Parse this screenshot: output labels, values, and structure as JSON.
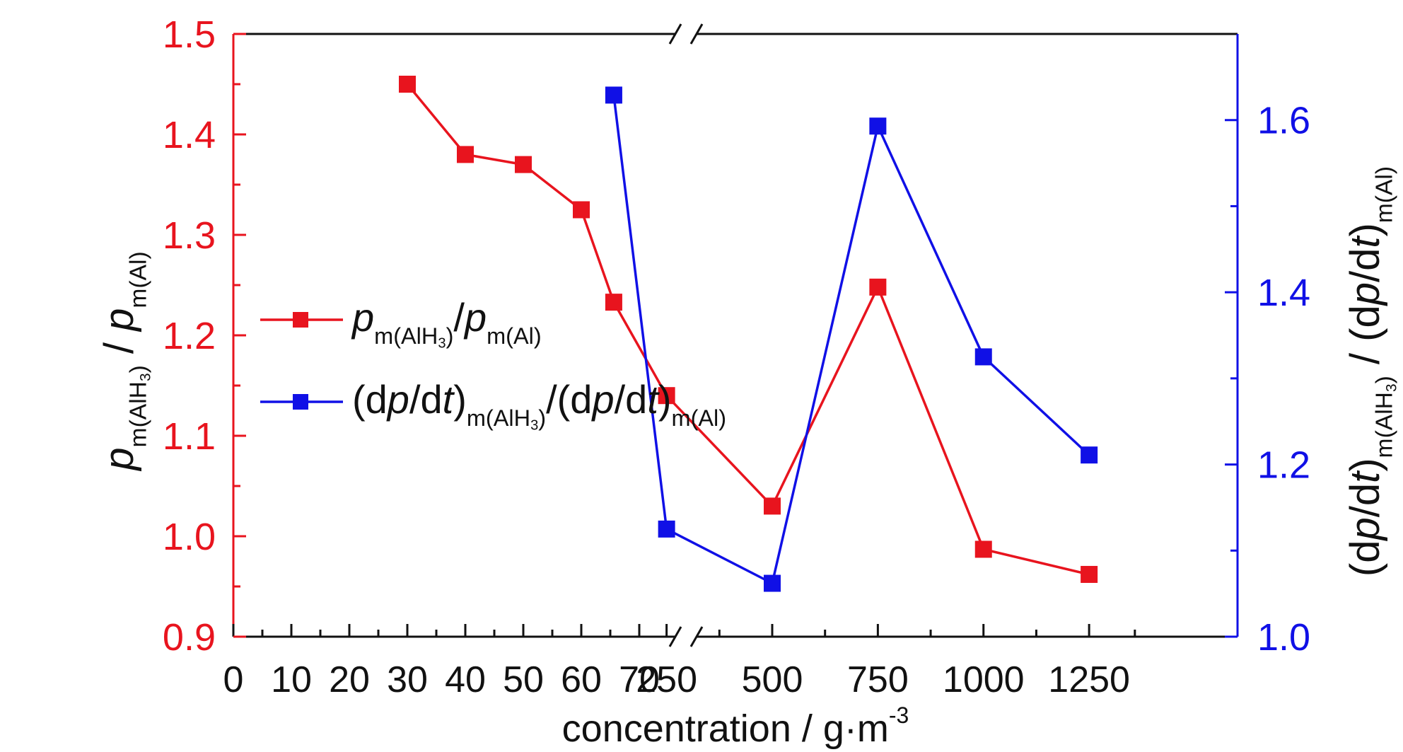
{
  "chart_data": {
    "type": "line",
    "xlabel": {
      "main": "concentration / g·m",
      "sup": "-3"
    },
    "x_ticks_left": [
      "0",
      "10",
      "20",
      "30",
      "40",
      "50",
      "60",
      "70"
    ],
    "x_ticks_right": [
      "250",
      "500",
      "750",
      "1000",
      "1250"
    ],
    "x_axis_break": "between 70 and 250",
    "ylim_left": [
      0.9,
      1.5
    ],
    "y_ticks_left": [
      "0.9",
      "1.0",
      "1.1",
      "1.2",
      "1.3",
      "1.4",
      "1.5"
    ],
    "ylim_right": [
      1.0,
      1.7
    ],
    "y_ticks_right": [
      "1.0",
      "1.2",
      "1.4",
      "1.6"
    ],
    "ylabel_left": {
      "p1": "p",
      "s1": "m(AlH",
      "s1sub": "3",
      "s1end": ")",
      "mid": " / ",
      "p2": "p",
      "s2": "m(Al)"
    },
    "ylabel_right": {
      "open": "(d",
      "p": "p",
      "slash": "/d",
      "t": "t",
      "close": ")",
      "s1": "m(AlH",
      "s1sub": "3",
      "s1end": ")",
      "mid": " / ",
      "s2": "m(Al)"
    },
    "series": [
      {
        "name": "p_m(AlH3)/p_m(Al)",
        "axis": "left",
        "color": "#e8141e",
        "marker": "square",
        "points": [
          {
            "x": 30,
            "y": 1.45
          },
          {
            "x": 40,
            "y": 1.38
          },
          {
            "x": 50,
            "y": 1.37
          },
          {
            "x": 60,
            "y": 1.325
          },
          {
            "x": 125,
            "y": 1.233
          },
          {
            "x": 250,
            "y": 1.14
          },
          {
            "x": 500,
            "y": 1.03
          },
          {
            "x": 750,
            "y": 1.248
          },
          {
            "x": 1000,
            "y": 0.987
          },
          {
            "x": 1250,
            "y": 0.962
          }
        ]
      },
      {
        "name": "(dp/dt)_m(AlH3)/(dp/dt)_m(Al)",
        "axis": "right",
        "color": "#1010e6",
        "marker": "square",
        "points": [
          {
            "x": 125,
            "y": 1.629
          },
          {
            "x": 250,
            "y": 1.125
          },
          {
            "x": 500,
            "y": 1.062
          },
          {
            "x": 750,
            "y": 1.593
          },
          {
            "x": 1000,
            "y": 1.325
          },
          {
            "x": 1250,
            "y": 1.211
          }
        ]
      }
    ],
    "legend": {
      "position": "left-middle",
      "items": [
        {
          "color": "#e8141e",
          "parts": [
            {
              "t": "p",
              "style": "italic"
            },
            {
              "t": "m(AlH",
              "style": "sub"
            },
            {
              "t": "3",
              "style": "subsub"
            },
            {
              "t": ")",
              "style": "sub"
            },
            {
              "t": "/",
              "style": "normal"
            },
            {
              "t": "p",
              "style": "italic"
            },
            {
              "t": "m(Al)",
              "style": "sub"
            }
          ]
        },
        {
          "color": "#1010e6",
          "parts": [
            {
              "t": "(d",
              "style": "normal"
            },
            {
              "t": "p",
              "style": "italic"
            },
            {
              "t": "/d",
              "style": "normal"
            },
            {
              "t": "t",
              "style": "italic"
            },
            {
              "t": ")",
              "style": "normal"
            },
            {
              "t": "m(AlH",
              "style": "sub"
            },
            {
              "t": "3",
              "style": "subsub"
            },
            {
              "t": ")",
              "style": "sub"
            },
            {
              "t": "/(d",
              "style": "normal"
            },
            {
              "t": "p",
              "style": "italic"
            },
            {
              "t": "/d",
              "style": "normal"
            },
            {
              "t": "t",
              "style": "italic"
            },
            {
              "t": ")",
              "style": "normal"
            },
            {
              "t": "m(Al)",
              "style": "sub"
            }
          ]
        }
      ]
    }
  }
}
